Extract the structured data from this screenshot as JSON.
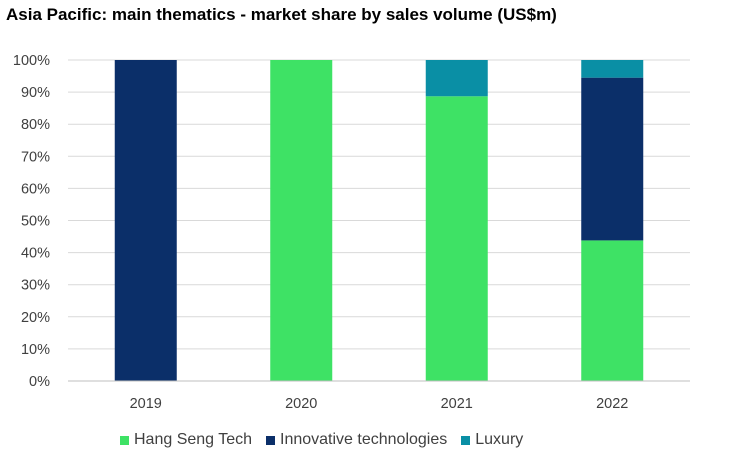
{
  "title": "Asia Pacific: main thematics - market share by sales volume (US$m)",
  "colors": {
    "hang_seng_tech": "#3ee265",
    "innovative_technologies": "#0b2f69",
    "luxury": "#0a8fa5",
    "gridline": "#d9d9d9",
    "axis": "#bfbfbf"
  },
  "chart_data": {
    "type": "bar",
    "stacked": true,
    "title": "Asia Pacific: main thematics - market share by sales volume (US$m)",
    "categories": [
      "2019",
      "2020",
      "2021",
      "2022"
    ],
    "series": [
      {
        "name": "Hang Seng Tech",
        "color": "#3ee265",
        "values": [
          0,
          100,
          88.7,
          43.8
        ]
      },
      {
        "name": "Innovative technologies",
        "color": "#0b2f69",
        "values": [
          100,
          0,
          0,
          50.7
        ]
      },
      {
        "name": "Luxury",
        "color": "#0a8fa5",
        "values": [
          0,
          0,
          11.3,
          5.5
        ]
      }
    ],
    "yticks": [
      "0%",
      "10%",
      "20%",
      "30%",
      "40%",
      "50%",
      "60%",
      "70%",
      "80%",
      "90%",
      "100%"
    ],
    "ylim": [
      0,
      100
    ],
    "grid": true,
    "legend_position": "bottom"
  }
}
